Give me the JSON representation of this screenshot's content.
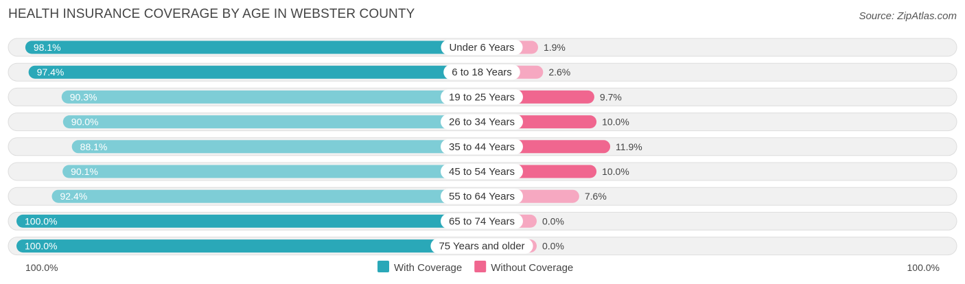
{
  "title": "HEALTH INSURANCE COVERAGE BY AGE IN WEBSTER COUNTY",
  "source": "Source: ZipAtlas.com",
  "colors": {
    "with_full": "#2aa8b8",
    "with_light": "#7ecdd6",
    "without_full": "#f0668f",
    "without_light": "#f6a8c1",
    "row_bg": "#f1f1f1",
    "row_border": "#dddddd"
  },
  "chart_data": {
    "type": "bar",
    "orientation": "horizontal-diverging",
    "categories": [
      "Under 6 Years",
      "6 to 18 Years",
      "19 to 25 Years",
      "26 to 34 Years",
      "35 to 44 Years",
      "45 to 54 Years",
      "55 to 64 Years",
      "65 to 74 Years",
      "75 Years and older"
    ],
    "series": [
      {
        "name": "With Coverage",
        "values": [
          98.1,
          97.4,
          90.3,
          90.0,
          88.1,
          90.1,
          92.4,
          100.0,
          100.0
        ],
        "labels": [
          "98.1%",
          "97.4%",
          "90.3%",
          "90.0%",
          "88.1%",
          "90.1%",
          "92.4%",
          "100.0%",
          "100.0%"
        ]
      },
      {
        "name": "Without Coverage",
        "values": [
          1.9,
          2.6,
          9.7,
          10.0,
          11.9,
          10.0,
          7.6,
          0.0,
          0.0
        ],
        "labels": [
          "1.9%",
          "2.6%",
          "9.7%",
          "10.0%",
          "11.9%",
          "10.0%",
          "7.6%",
          "0.0%",
          "0.0%"
        ]
      }
    ],
    "axis": {
      "left_label": "100.0%",
      "right_label": "100.0%",
      "max": 100
    },
    "legend": [
      {
        "name": "With Coverage",
        "color": "#2aa8b8"
      },
      {
        "name": "Without Coverage",
        "color": "#f0668f"
      }
    ]
  }
}
